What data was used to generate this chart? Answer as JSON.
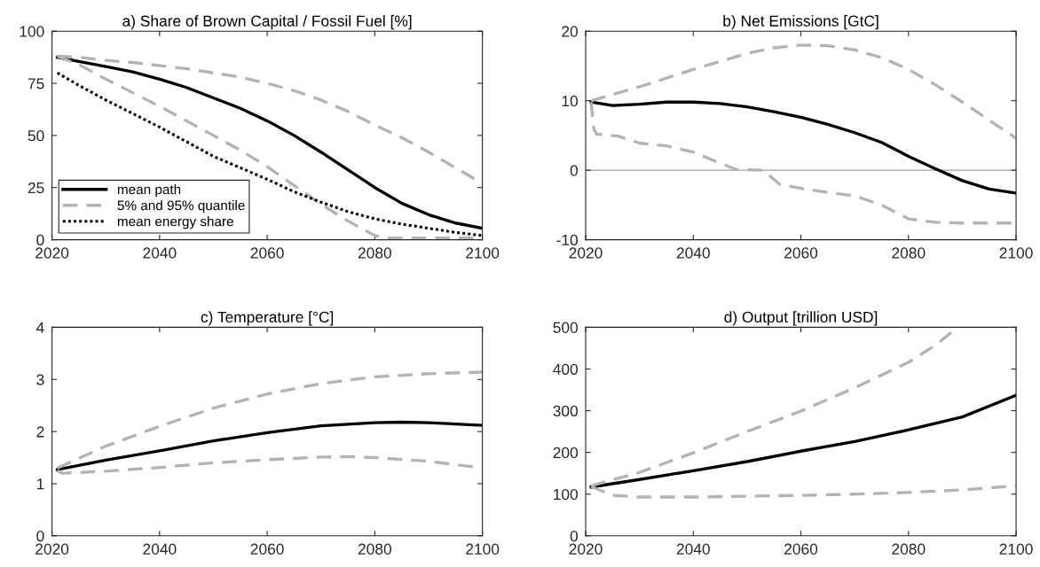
{
  "chart_data": [
    {
      "type": "line",
      "title": "a) Share of Brown Capital / Fossil Fuel [%]",
      "xlim": [
        2020,
        2100
      ],
      "xticks": [
        2020,
        2040,
        2060,
        2080,
        2100
      ],
      "ylim": [
        0,
        100
      ],
      "yticks": [
        0,
        25,
        50,
        75,
        100
      ],
      "grid": false,
      "legend": "bottom left",
      "series": [
        {
          "name": "mean path",
          "color": "#000000",
          "line_style": "solid",
          "x": [
            2021,
            2025,
            2030,
            2035,
            2040,
            2045,
            2050,
            2055,
            2060,
            2065,
            2070,
            2075,
            2080,
            2085,
            2090,
            2095,
            2100
          ],
          "values": [
            87.5,
            85.5,
            83,
            80.5,
            77,
            73,
            68,
            63,
            57,
            50,
            42,
            33.5,
            25,
            17.5,
            12,
            8,
            5.5
          ]
        },
        {
          "name": "5% and 95% quantile",
          "color": "#b3b3b3",
          "line_style": "dashed",
          "x": [
            2021,
            2025,
            2030,
            2035,
            2040,
            2045,
            2050,
            2055,
            2060,
            2065,
            2070,
            2075,
            2080,
            2085,
            2090,
            2095,
            2100
          ],
          "values": [
            88,
            87.5,
            86,
            85,
            83.5,
            82,
            80,
            78,
            75,
            71.5,
            67,
            61.5,
            55,
            49,
            42,
            34.5,
            27
          ]
        },
        {
          "color": "#b3b3b3",
          "line_style": "dashed",
          "x": [
            2021,
            2025,
            2030,
            2035,
            2040,
            2045,
            2050,
            2055,
            2060,
            2065,
            2070,
            2075,
            2080,
            2082,
            2090,
            2100
          ],
          "values": [
            88,
            84,
            77,
            70.5,
            64,
            57,
            50,
            43,
            35,
            26,
            17,
            9,
            2,
            0.8,
            0.8,
            0.8
          ]
        },
        {
          "name": "mean energy share",
          "color": "#000000",
          "line_style": "dotted",
          "x": [
            2021,
            2025,
            2030,
            2035,
            2040,
            2045,
            2050,
            2055,
            2060,
            2065,
            2070,
            2075,
            2080,
            2085,
            2090,
            2095,
            2100
          ],
          "values": [
            80,
            74,
            67,
            60.5,
            54,
            47,
            40,
            34.5,
            29,
            23,
            18,
            13.5,
            10,
            7.5,
            5.5,
            3.5,
            2
          ]
        }
      ]
    },
    {
      "type": "line",
      "title": "b) Net Emissions [GtC]",
      "xlim": [
        2020,
        2100
      ],
      "xticks": [
        2020,
        2040,
        2060,
        2080,
        2100
      ],
      "ylim": [
        -10,
        20
      ],
      "yticks": [
        -10,
        0,
        10,
        20
      ],
      "grid": false,
      "ref_lines": [
        {
          "axis": "y",
          "value": 0,
          "color": "#a0a0a0"
        }
      ],
      "series": [
        {
          "color": "#000000",
          "line_style": "solid",
          "x": [
            2021,
            2025,
            2030,
            2035,
            2040,
            2045,
            2050,
            2055,
            2060,
            2065,
            2070,
            2075,
            2080,
            2085,
            2090,
            2095,
            2100
          ],
          "values": [
            9.8,
            9.3,
            9.5,
            9.8,
            9.8,
            9.6,
            9.1,
            8.4,
            7.6,
            6.6,
            5.4,
            4.0,
            2.0,
            0.2,
            -1.5,
            -2.7,
            -3.3
          ]
        },
        {
          "color": "#b3b3b3",
          "line_style": "dashed",
          "x": [
            2021,
            2030,
            2040,
            2050,
            2055,
            2060,
            2065,
            2070,
            2075,
            2080,
            2085,
            2090,
            2095,
            2100
          ],
          "values": [
            10,
            12,
            14.5,
            16.8,
            17.6,
            18,
            17.9,
            17.3,
            16.2,
            14.5,
            12.3,
            9.8,
            7.2,
            4.6
          ]
        },
        {
          "color": "#b3b3b3",
          "line_style": "dashed",
          "x": [
            2021,
            2021.5,
            2022,
            2026,
            2030,
            2035,
            2040,
            2045,
            2048,
            2053,
            2056,
            2060,
            2065,
            2070,
            2075,
            2080,
            2085,
            2090,
            2100
          ],
          "values": [
            9.8,
            6,
            5.2,
            4.9,
            3.9,
            3.5,
            2.6,
            1.0,
            0.1,
            0,
            -2,
            -2.6,
            -3.2,
            -3.7,
            -5.0,
            -7.0,
            -7.5,
            -7.6,
            -7.6
          ]
        }
      ]
    },
    {
      "type": "line",
      "title": "c) Temperature [°C]",
      "xlim": [
        2020,
        2100
      ],
      "xticks": [
        2020,
        2040,
        2060,
        2080,
        2100
      ],
      "ylim": [
        0,
        4
      ],
      "yticks": [
        0,
        1,
        2,
        3,
        4
      ],
      "grid": false,
      "series": [
        {
          "color": "#000000",
          "line_style": "solid",
          "x": [
            2021,
            2030,
            2040,
            2050,
            2060,
            2070,
            2080,
            2085,
            2090,
            2100
          ],
          "values": [
            1.27,
            1.45,
            1.63,
            1.82,
            1.98,
            2.11,
            2.17,
            2.18,
            2.17,
            2.12
          ]
        },
        {
          "color": "#b3b3b3",
          "line_style": "dashed",
          "x": [
            2021,
            2030,
            2040,
            2050,
            2060,
            2070,
            2080,
            2090,
            2100
          ],
          "values": [
            1.3,
            1.72,
            2.1,
            2.45,
            2.72,
            2.92,
            3.05,
            3.11,
            3.14
          ]
        },
        {
          "color": "#b3b3b3",
          "line_style": "dashed",
          "x": [
            2021,
            2022,
            2030,
            2040,
            2050,
            2060,
            2070,
            2075,
            2080,
            2090,
            2100
          ],
          "values": [
            1.25,
            1.2,
            1.24,
            1.31,
            1.4,
            1.46,
            1.51,
            1.52,
            1.5,
            1.43,
            1.3
          ]
        }
      ]
    },
    {
      "type": "line",
      "title": "d) Output [trillion USD]",
      "xlim": [
        2020,
        2100
      ],
      "xticks": [
        2020,
        2040,
        2060,
        2080,
        2100
      ],
      "ylim": [
        0,
        500
      ],
      "yticks": [
        0,
        100,
        200,
        300,
        400,
        500
      ],
      "grid": false,
      "series": [
        {
          "color": "#000000",
          "line_style": "solid",
          "x": [
            2021,
            2030,
            2040,
            2050,
            2060,
            2070,
            2080,
            2090,
            2100
          ],
          "values": [
            117,
            135,
            156,
            178,
            203,
            226,
            254,
            285,
            337
          ]
        },
        {
          "color": "#b3b3b3",
          "line_style": "dashed",
          "x": [
            2021,
            2030,
            2040,
            2050,
            2060,
            2070,
            2080,
            2085,
            2088
          ],
          "values": [
            120,
            152,
            199,
            250,
            299,
            355,
            416,
            457,
            488
          ]
        },
        {
          "color": "#b3b3b3",
          "line_style": "dashed",
          "x": [
            2021,
            2025,
            2030,
            2040,
            2050,
            2060,
            2070,
            2080,
            2090,
            2100
          ],
          "values": [
            118,
            97,
            93,
            93,
            95,
            97,
            100,
            104,
            110,
            120
          ]
        }
      ]
    }
  ]
}
